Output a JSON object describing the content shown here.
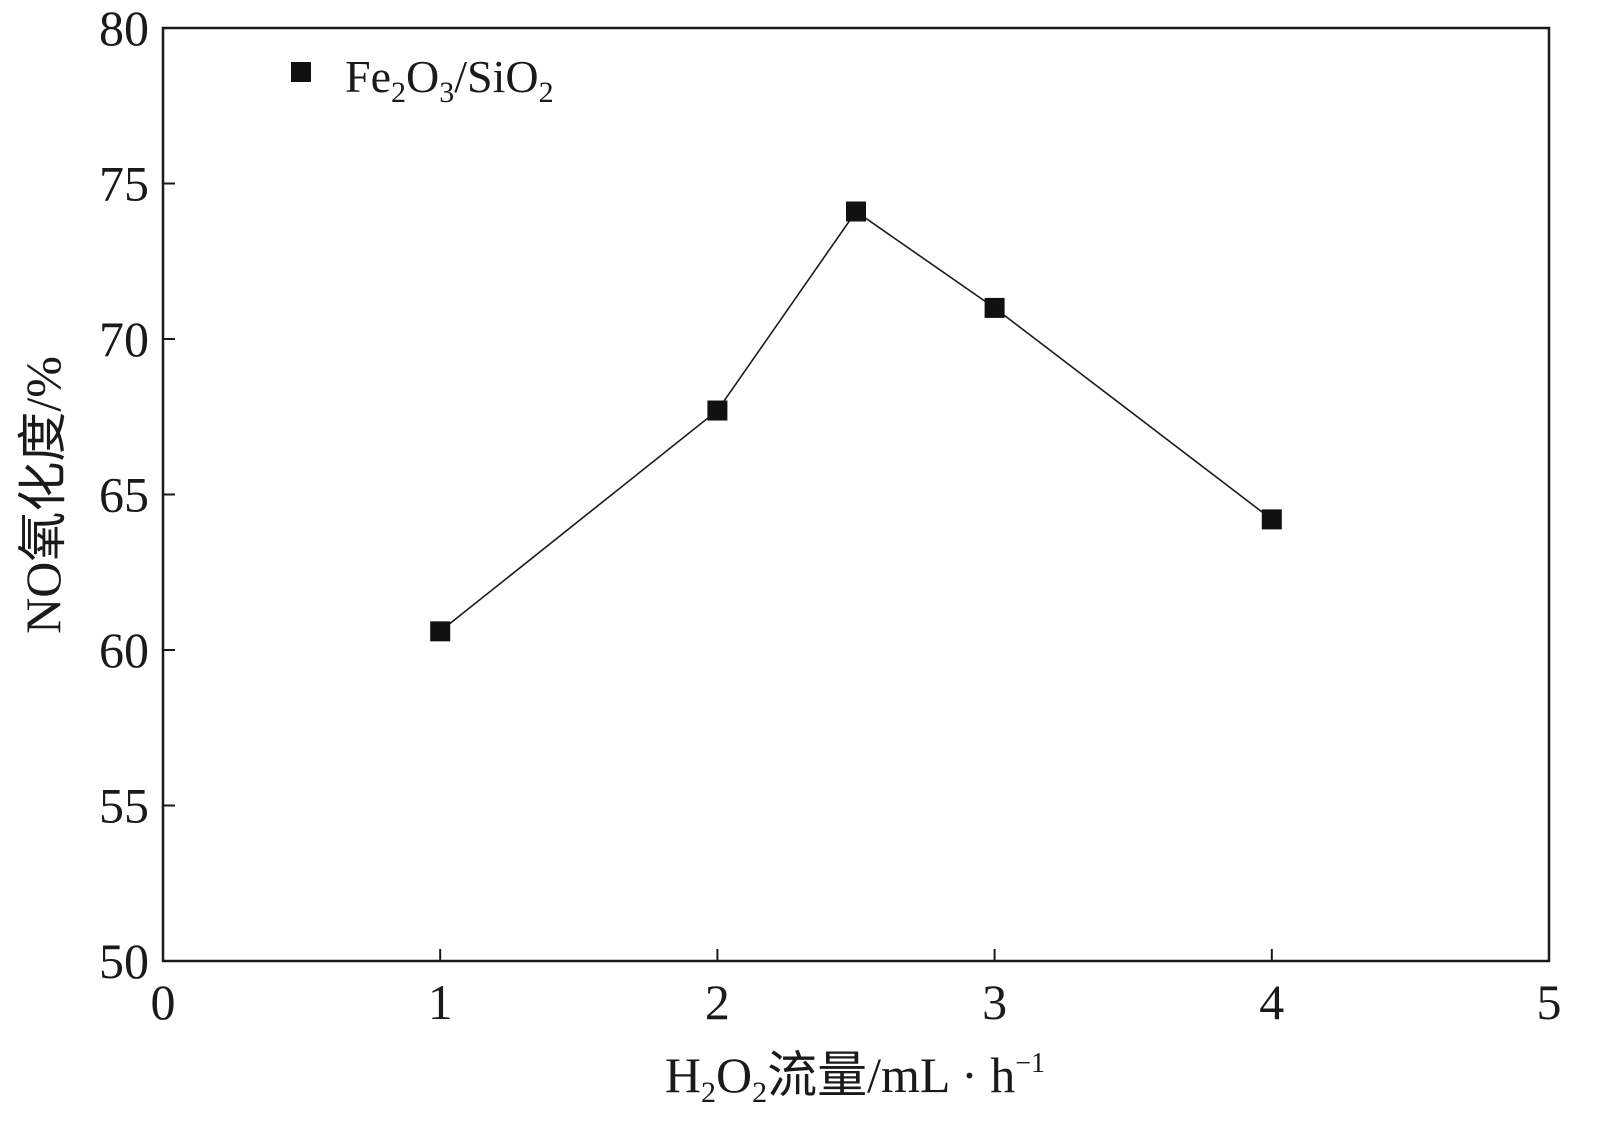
{
  "chart_data": {
    "type": "line",
    "x": [
      1,
      2,
      2.5,
      3,
      4
    ],
    "series": [
      {
        "name": "Fe2O3/SiO2",
        "values": [
          60.6,
          67.7,
          74.1,
          71.0,
          64.2
        ]
      }
    ],
    "xlabel": "H2O2流量/mL·h⁻¹",
    "ylabel": "NO氧化度/%",
    "xlim": [
      0,
      5
    ],
    "ylim": [
      50,
      80
    ],
    "xticks": [
      "0",
      "1",
      "2",
      "3",
      "4",
      "5"
    ],
    "yticks": [
      "50",
      "55",
      "60",
      "65",
      "70",
      "75",
      "80"
    ],
    "grid": false,
    "legend_position": "top-left",
    "colors": {
      "line": "#1a1a1a",
      "marker": "#111111",
      "axis": "#1a1a1a"
    },
    "marker": "square"
  },
  "legend": {
    "parts": [
      "Fe",
      "2",
      "O",
      "3",
      "/SiO",
      "2"
    ]
  },
  "labels": {
    "x_parts": [
      "H",
      "2",
      "O",
      "2",
      "流量/mL · h",
      "−1"
    ],
    "y_text": "NO氧化度/%"
  }
}
